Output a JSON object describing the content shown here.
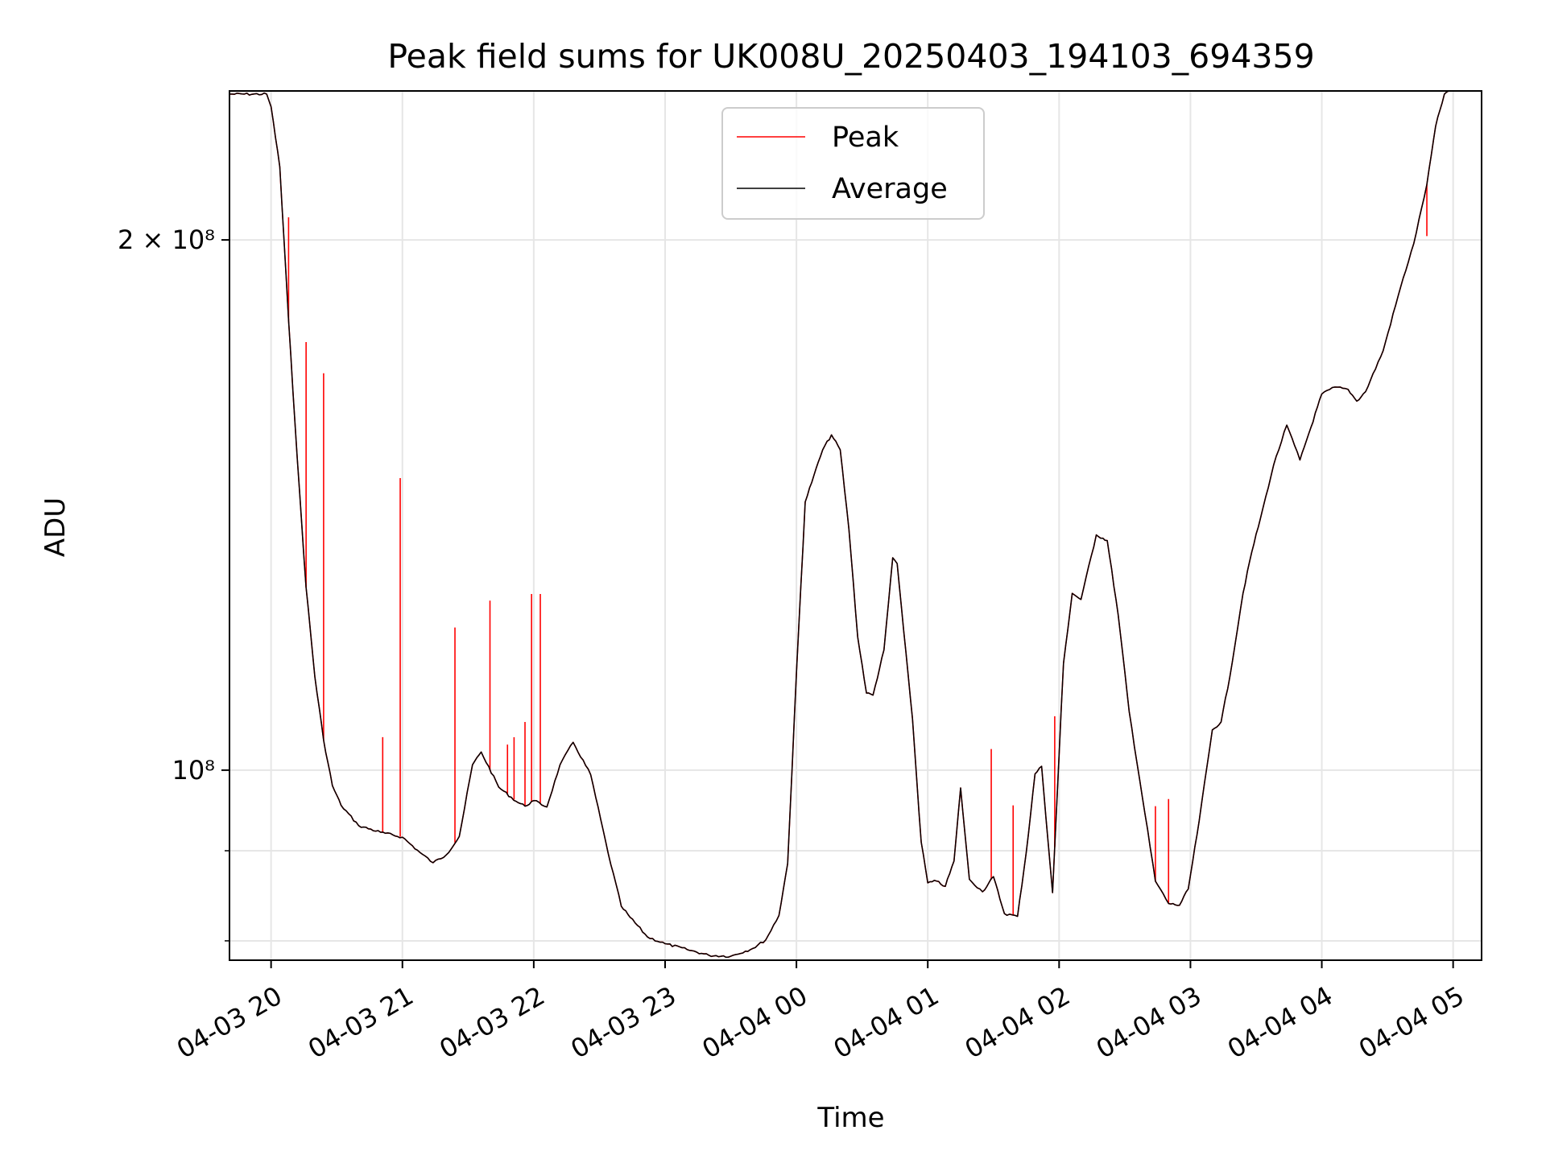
{
  "chart_data": {
    "type": "line",
    "title": "Peak field sums for UK008U_20250403_194103_694359",
    "xlabel": "Time",
    "ylabel": "ADU",
    "y_scale": "log",
    "ylim": [
      78000000,
      243000000
    ],
    "xlim": [
      "2025-04-03 19:41",
      "2025-04-04 05:13"
    ],
    "x_tick_labels": [
      "04-03 20",
      "04-03 21",
      "04-03 22",
      "04-03 23",
      "04-04 00",
      "04-04 01",
      "04-04 02",
      "04-04 03",
      "04-04 04",
      "04-04 05"
    ],
    "y_tick_labels": [
      "2 × 10⁸",
      "10⁸"
    ],
    "grid": true,
    "legend": {
      "position": "top-center",
      "entries": [
        "Peak",
        "Average"
      ]
    },
    "colors": {
      "Peak": "#ff0000",
      "Average": "#000000"
    },
    "series": [
      {
        "name": "Average",
        "x": [
          "2025-04-03 19:41",
          "2025-04-03 19:58",
          "2025-04-03 20:00",
          "2025-04-03 20:04",
          "2025-04-03 20:08",
          "2025-04-03 20:12",
          "2025-04-03 20:16",
          "2025-04-03 20:20",
          "2025-04-03 20:24",
          "2025-04-03 20:28",
          "2025-04-03 20:32",
          "2025-04-03 20:40",
          "2025-04-03 20:50",
          "2025-04-03 21:00",
          "2025-04-03 21:08",
          "2025-04-03 21:14",
          "2025-04-03 21:20",
          "2025-04-03 21:26",
          "2025-04-03 21:32",
          "2025-04-03 21:36",
          "2025-04-03 21:44",
          "2025-04-03 21:52",
          "2025-04-03 21:56",
          "2025-04-03 22:00",
          "2025-04-03 22:06",
          "2025-04-03 22:12",
          "2025-04-03 22:18",
          "2025-04-03 22:26",
          "2025-04-03 22:34",
          "2025-04-03 22:40",
          "2025-04-03 22:44",
          "2025-04-03 22:52",
          "2025-04-03 23:00",
          "2025-04-03 23:10",
          "2025-04-03 23:20",
          "2025-04-03 23:30",
          "2025-04-03 23:40",
          "2025-04-03 23:46",
          "2025-04-03 23:52",
          "2025-04-03 23:56",
          "2025-04-04 00:00",
          "2025-04-04 00:04",
          "2025-04-04 00:08",
          "2025-04-04 00:12",
          "2025-04-04 00:16",
          "2025-04-04 00:20",
          "2025-04-04 00:24",
          "2025-04-04 00:28",
          "2025-04-04 00:32",
          "2025-04-04 00:35",
          "2025-04-04 00:40",
          "2025-04-04 00:44",
          "2025-04-04 00:46",
          "2025-04-04 00:49",
          "2025-04-04 00:53",
          "2025-04-04 00:57",
          "2025-04-04 01:00",
          "2025-04-04 01:04",
          "2025-04-04 01:08",
          "2025-04-04 01:12",
          "2025-04-04 01:15",
          "2025-04-04 01:19",
          "2025-04-04 01:25",
          "2025-04-04 01:30",
          "2025-04-04 01:35",
          "2025-04-04 01:41",
          "2025-04-04 01:45",
          "2025-04-04 01:49",
          "2025-04-04 01:52",
          "2025-04-04 01:57",
          "2025-04-04 02:02",
          "2025-04-04 02:06",
          "2025-04-04 02:10",
          "2025-04-04 02:17",
          "2025-04-04 02:22",
          "2025-04-04 02:27",
          "2025-04-04 02:32",
          "2025-04-04 02:38",
          "2025-04-04 02:44",
          "2025-04-04 02:50",
          "2025-04-04 02:55",
          "2025-04-04 02:59",
          "2025-04-04 03:04",
          "2025-04-04 03:10",
          "2025-04-04 03:14",
          "2025-04-04 03:18",
          "2025-04-04 03:24",
          "2025-04-04 03:28",
          "2025-04-04 03:32",
          "2025-04-04 03:38",
          "2025-04-04 03:44",
          "2025-04-04 03:50",
          "2025-04-04 03:55",
          "2025-04-04 04:00",
          "2025-04-04 04:06",
          "2025-04-04 04:12",
          "2025-04-04 04:16",
          "2025-04-04 04:20",
          "2025-04-04 04:28",
          "2025-04-04 04:36",
          "2025-04-04 04:42",
          "2025-04-04 04:48",
          "2025-04-04 04:52",
          "2025-04-04 04:56",
          "2025-04-04 04:58"
        ],
        "y": [
          242000000,
          242000000,
          238000000,
          220000000,
          180000000,
          150000000,
          127000000,
          113000000,
          104000000,
          98000000,
          95500000,
          93000000,
          92200000,
          91600000,
          89800000,
          88600000,
          89500000,
          91700000,
          100700000,
          102400000,
          97800000,
          96000000,
          95400000,
          96100000,
          95300000,
          100700000,
          103700000,
          99400000,
          89700000,
          83700000,
          82500000,
          80400000,
          79700000,
          79100000,
          78500000,
          78400000,
          79200000,
          80100000,
          82700000,
          88500000,
          113500000,
          142000000,
          147000000,
          152000000,
          155000000,
          152000000,
          137000000,
          119000000,
          110600000,
          110300000,
          117000000,
          132000000,
          131000000,
          120000000,
          107000000,
          91000000,
          86300000,
          86500000,
          85900000,
          88800000,
          97700000,
          86700000,
          85300000,
          87000000,
          82900000,
          82600000,
          89800000,
          99500000,
          100500000,
          85200000,
          115000000,
          126000000,
          125000000,
          136000000,
          135000000,
          122500000,
          108000000,
          96600000,
          86500000,
          84000000,
          83800000,
          85600000,
          93600000,
          105400000,
          106500000,
          113000000,
          126000000,
          133000000,
          139000000,
          149000000,
          157000000,
          150000000,
          156500000,
          163500000,
          165000000,
          164500000,
          162000000,
          164000000,
          173000000,
          188000000,
          199000000,
          215000000,
          232000000,
          242000000,
          243000000
        ]
      },
      {
        "name": "Peak",
        "spikes": [
          {
            "x": "2025-04-03 20:08",
            "y": 206000000
          },
          {
            "x": "2025-04-03 20:16",
            "y": 175000000
          },
          {
            "x": "2025-04-03 20:24",
            "y": 168000000
          },
          {
            "x": "2025-04-03 20:51",
            "y": 104400000
          },
          {
            "x": "2025-04-03 20:59",
            "y": 146500000
          },
          {
            "x": "2025-04-03 21:24",
            "y": 120500000
          },
          {
            "x": "2025-04-03 21:40",
            "y": 124800000
          },
          {
            "x": "2025-04-03 21:48",
            "y": 103400000
          },
          {
            "x": "2025-04-03 21:51",
            "y": 104400000
          },
          {
            "x": "2025-04-03 21:56",
            "y": 106500000
          },
          {
            "x": "2025-04-03 21:59",
            "y": 125900000
          },
          {
            "x": "2025-04-03 22:03",
            "y": 125900000
          },
          {
            "x": "2025-04-04 01:29",
            "y": 102800000
          },
          {
            "x": "2025-04-04 01:39",
            "y": 95500000
          },
          {
            "x": "2025-04-04 01:58",
            "y": 107300000
          },
          {
            "x": "2025-04-04 02:44",
            "y": 95400000
          },
          {
            "x": "2025-04-04 02:50",
            "y": 96300000
          },
          {
            "x": "2025-04-04 04:48",
            "y": 201000000
          }
        ]
      }
    ]
  }
}
